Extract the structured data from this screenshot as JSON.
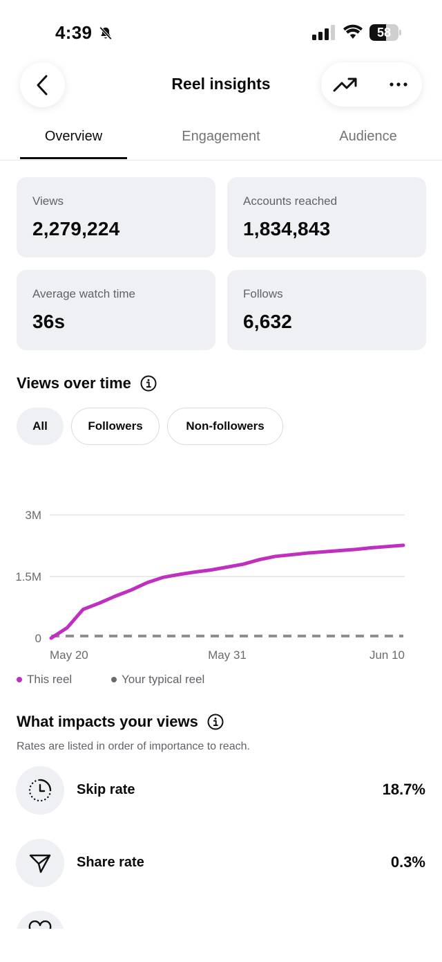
{
  "status_bar": {
    "time": "4:39",
    "battery": "58",
    "battery_level": 0.58
  },
  "header": {
    "title": "Reel insights"
  },
  "tabs": [
    {
      "label": "Overview",
      "active": true
    },
    {
      "label": "Engagement",
      "active": false
    },
    {
      "label": "Audience",
      "active": false
    }
  ],
  "stats": [
    {
      "label": "Views",
      "value": "2,279,224"
    },
    {
      "label": "Accounts reached",
      "value": "1,834,843"
    },
    {
      "label": "Average watch time",
      "value": "36s"
    },
    {
      "label": "Follows",
      "value": "6,632"
    }
  ],
  "views_over_time": {
    "title": "Views over time",
    "filters": [
      {
        "label": "All",
        "selected": true
      },
      {
        "label": "Followers",
        "selected": false
      },
      {
        "label": "Non-followers",
        "selected": false
      }
    ]
  },
  "chart_data": {
    "type": "line",
    "y_ticks": [
      "3M",
      "1.5M",
      "0"
    ],
    "x_ticks": [
      "May 20",
      "May 31",
      "Jun 10"
    ],
    "ylim": [
      0,
      3000000
    ],
    "xlim": [
      0,
      22
    ],
    "grid": true,
    "legend_placement": "bottom-left",
    "series": [
      {
        "name": "This reel",
        "color": "#c030c0",
        "style": "solid",
        "x": [
          0,
          1,
          2,
          3,
          4,
          5,
          6,
          7,
          8,
          9,
          10,
          11,
          12,
          13,
          14,
          15,
          16,
          17,
          18,
          19,
          20,
          21,
          22
        ],
        "values": [
          0,
          250000,
          700000,
          850000,
          1020000,
          1170000,
          1350000,
          1480000,
          1550000,
          1610000,
          1660000,
          1730000,
          1800000,
          1910000,
          1990000,
          2030000,
          2070000,
          2100000,
          2130000,
          2160000,
          2200000,
          2230000,
          2260000
        ]
      },
      {
        "name": "Your typical reel",
        "color": "#8e8e8e",
        "style": "dashed",
        "x": [
          0,
          22
        ],
        "values": [
          50000,
          50000
        ]
      }
    ]
  },
  "impacts": {
    "title": "What impacts your views",
    "subtitle": "Rates are listed in order of importance to reach.",
    "items": [
      {
        "label": "Skip rate",
        "value": "18.7%",
        "icon": "clock-icon"
      },
      {
        "label": "Share rate",
        "value": "0.3%",
        "icon": "send-icon"
      }
    ]
  },
  "colors": {
    "card_bg": "#eff0f3",
    "accent": "#c030c0",
    "muted": "#5f6368"
  }
}
